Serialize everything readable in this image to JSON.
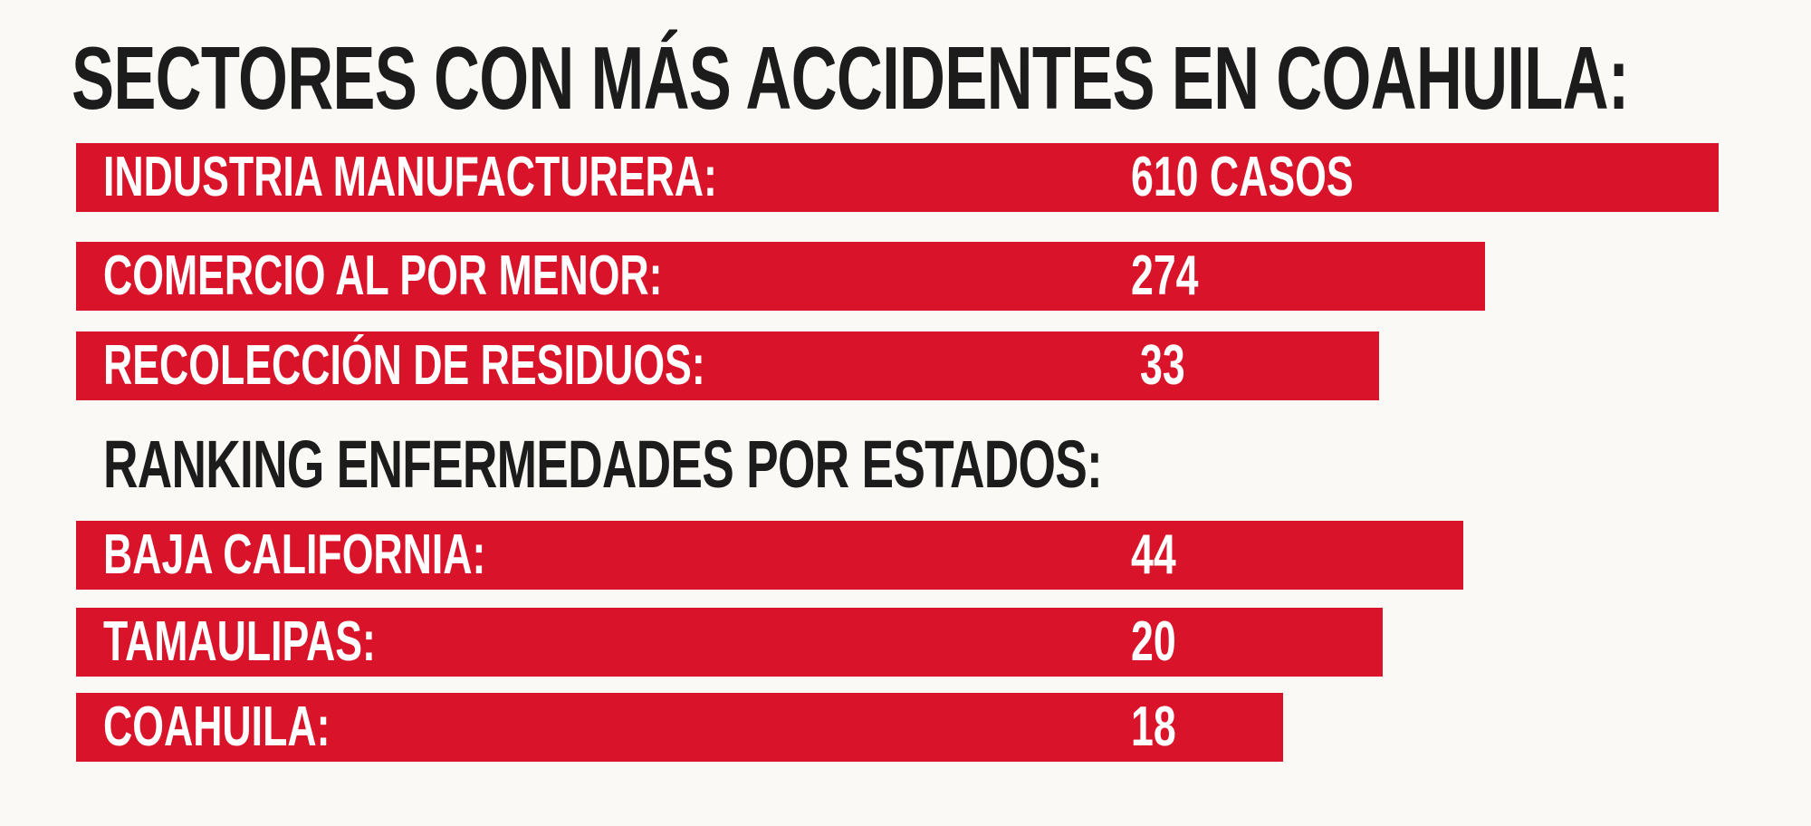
{
  "title": "SECTORES CON MÁS ACCIDENTES EN COAHUILA:",
  "sectors": {
    "rows": [
      {
        "label": "INDUSTRIA MANUFACTURERA:",
        "value": "610 CASOS"
      },
      {
        "label": "COMERCIO AL POR MENOR:",
        "value": "274"
      },
      {
        "label": "RECOLECCIÓN DE RESIDUOS:",
        "value": "33"
      }
    ]
  },
  "ranking": {
    "heading": "RANKING ENFERMEDADES POR ESTADOS:",
    "rows": [
      {
        "label": "BAJA CALIFORNIA:",
        "value": "44"
      },
      {
        "label": "TAMAULIPAS:",
        "value": "20"
      },
      {
        "label": "COAHUILA:",
        "value": "18"
      }
    ]
  }
}
